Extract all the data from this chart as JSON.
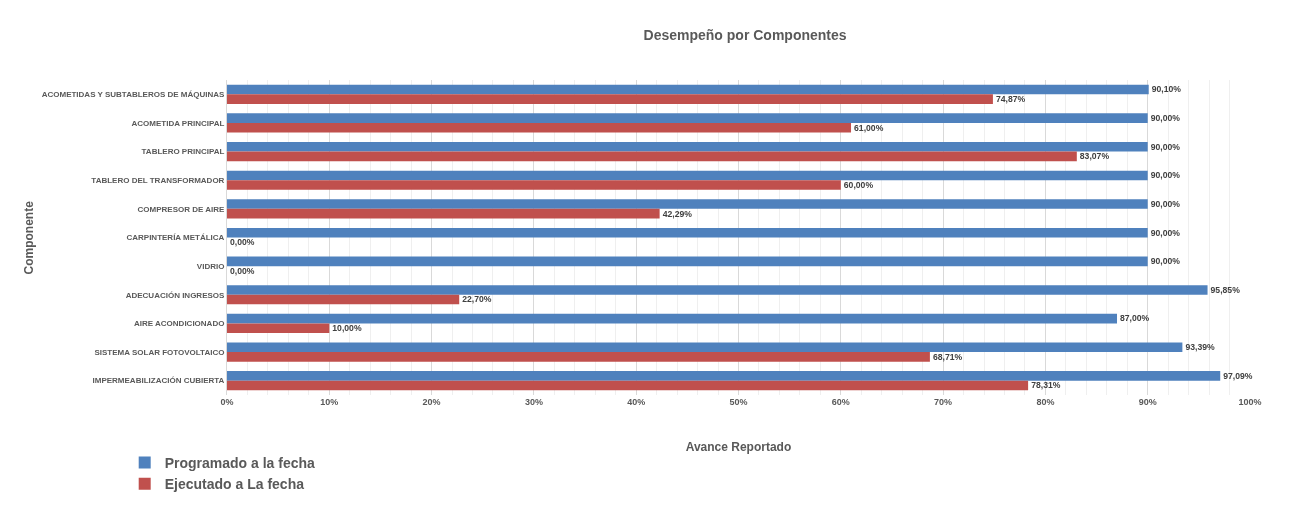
{
  "chart_data": {
    "type": "bar",
    "orientation": "horizontal",
    "title": "Desempeño por Componentes",
    "xlabel": "Avance Reportado",
    "ylabel": "Componente",
    "categories": [
      "ACOMETIDAS Y SUBTABLEROS DE MÁQUINAS",
      "ACOMETIDA PRINCIPAL",
      "TABLERO PRINCIPAL",
      "TABLERO DEL TRANSFORMADOR",
      "COMPRESOR DE AIRE",
      "CARPINTERÍA METÁLICA",
      "VIDRIO",
      "ADECUACIÓN INGRESOS",
      "AIRE ACONDICIONADO",
      "SISTEMA SOLAR FOTOVOLTAICO",
      "IMPERMEABILIZACIÓN CUBIERTA"
    ],
    "series": [
      {
        "name": "Programado a la fecha",
        "color": "#4f81bd",
        "values": [
          90.1,
          90,
          90,
          90,
          90,
          90,
          90,
          95.85,
          87,
          93.39,
          97.09
        ],
        "value_labels": [
          "90,10%",
          "90,00%",
          "90,00%",
          "90,00%",
          "90,00%",
          "90,00%",
          "90,00%",
          "95,85%",
          "87,00%",
          "93,39%",
          "97,09%"
        ]
      },
      {
        "name": "Ejecutado a La fecha",
        "color": "#c0504d",
        "values": [
          74.87,
          61,
          83.07,
          60,
          42.29,
          0,
          0,
          22.7,
          10,
          68.71,
          78.31
        ],
        "value_labels": [
          "74,87%",
          "61,00%",
          "83,07%",
          "60,00%",
          "42,29%",
          "0,00%",
          "0,00%",
          "22,70%",
          "10,00%",
          "68,71%",
          "78,31%"
        ]
      }
    ],
    "xlim": [
      0,
      100
    ],
    "xticks": [
      {
        "value": 0,
        "label": "0%"
      },
      {
        "value": 2,
        "label": null
      },
      {
        "value": 4,
        "label": null
      },
      {
        "value": 6,
        "label": null
      },
      {
        "value": 8,
        "label": null
      },
      {
        "value": 10,
        "label": "10%"
      },
      {
        "value": 12,
        "label": null
      },
      {
        "value": 14,
        "label": null
      },
      {
        "value": 16,
        "label": null
      },
      {
        "value": 18,
        "label": null
      },
      {
        "value": 20,
        "label": "20%"
      },
      {
        "value": 22,
        "label": null
      },
      {
        "value": 24,
        "label": null
      },
      {
        "value": 26,
        "label": null
      },
      {
        "value": 28,
        "label": null
      },
      {
        "value": 30,
        "label": "30%"
      },
      {
        "value": 32,
        "label": null
      },
      {
        "value": 34,
        "label": null
      },
      {
        "value": 36,
        "label": null
      },
      {
        "value": 38,
        "label": null
      },
      {
        "value": 40,
        "label": "40%"
      },
      {
        "value": 42,
        "label": null
      },
      {
        "value": 44,
        "label": null
      },
      {
        "value": 46,
        "label": null
      },
      {
        "value": 48,
        "label": null
      },
      {
        "value": 50,
        "label": "50%"
      },
      {
        "value": 52,
        "label": null
      },
      {
        "value": 54,
        "label": null
      },
      {
        "value": 56,
        "label": null
      },
      {
        "value": 58,
        "label": null
      },
      {
        "value": 60,
        "label": "60%"
      },
      {
        "value": 62,
        "label": null
      },
      {
        "value": 64,
        "label": null
      },
      {
        "value": 66,
        "label": null
      },
      {
        "value": 68,
        "label": null
      },
      {
        "value": 70,
        "label": "70%"
      },
      {
        "value": 72,
        "label": null
      },
      {
        "value": 74,
        "label": null
      },
      {
        "value": 76,
        "label": null
      },
      {
        "value": 78,
        "label": null
      },
      {
        "value": 80,
        "label": "80%"
      },
      {
        "value": 82,
        "label": null
      },
      {
        "value": 84,
        "label": null
      },
      {
        "value": 86,
        "label": null
      },
      {
        "value": 88,
        "label": null
      },
      {
        "value": 90,
        "label": "90%"
      },
      {
        "value": 92,
        "label": null
      },
      {
        "value": 94,
        "label": null
      },
      {
        "value": 96,
        "label": null
      },
      {
        "value": 98,
        "label": null
      },
      {
        "value": 100,
        "label": "100%"
      }
    ],
    "grid": "x",
    "legend": "bottom left"
  }
}
